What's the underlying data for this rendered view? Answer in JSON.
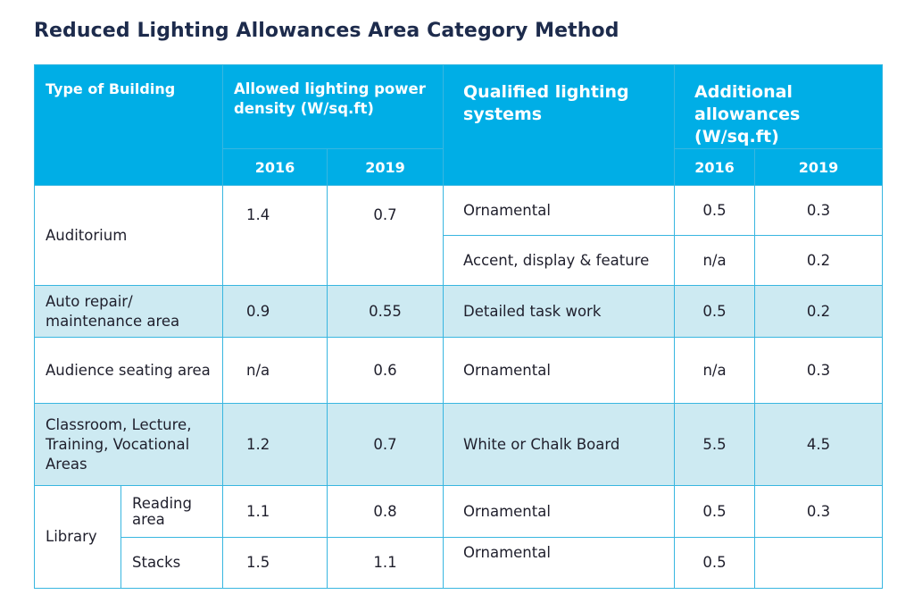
{
  "title": "Reduced Lighting Allowances Area Category Method",
  "headers": {
    "type_of_building": "Type of Building",
    "allowed_density": "Allowed lighting power density (W/sq.ft)",
    "qualified_systems": "Qualified lighting systems",
    "additional_allowances": "Additional allowances (W/sq.ft)",
    "year_a": "2016",
    "year_b": "2019"
  },
  "rows": {
    "auditorium": {
      "building": "Auditorium",
      "d2016": "1.4",
      "d2019": "0.7",
      "systems": [
        {
          "name": "Ornamental",
          "a2016": "0.5",
          "a2019": "0.3"
        },
        {
          "name": "Accent, display & feature",
          "a2016": "n/a",
          "a2019": "0.2"
        }
      ]
    },
    "auto_repair": {
      "building": "Auto repair/ maintenance area",
      "d2016": "0.9",
      "d2019": "0.55",
      "system": "Detailed task work",
      "a2016": "0.5",
      "a2019": "0.2"
    },
    "audience_seating": {
      "building": "Audience seating area",
      "d2016": "n/a",
      "d2019": "0.6",
      "system": "Ornamental",
      "a2016": "n/a",
      "a2019": "0.3"
    },
    "classroom": {
      "building": "Classroom, Lecture, Training, Vocational Areas",
      "d2016": "1.2",
      "d2019": "0.7",
      "system": "White or Chalk Board",
      "a2016": "5.5",
      "a2019": "4.5"
    },
    "library": {
      "building": "Library",
      "sub": [
        {
          "name": "Reading area",
          "d2016": "1.1",
          "d2019": "0.8",
          "system": "Ornamental",
          "a2016": "0.5",
          "a2019": "0.3"
        },
        {
          "name": "Stacks",
          "d2016": "1.5",
          "d2019": "1.1",
          "system": "Ornamental",
          "a2016": "0.5",
          "a2019": ""
        }
      ]
    }
  }
}
